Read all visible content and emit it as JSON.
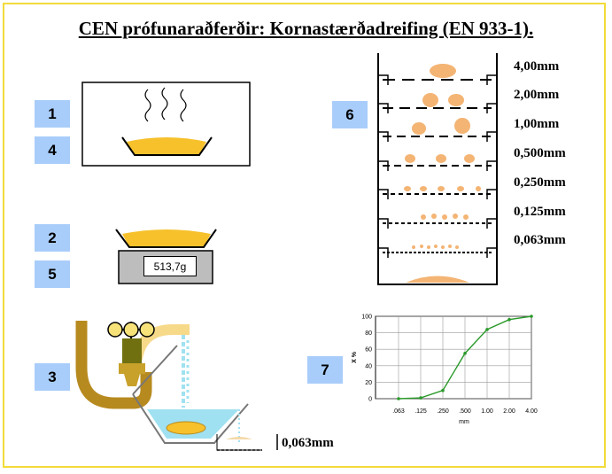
{
  "title": "CEN prófunaraðferðir: Kornastærðadreifing (EN 933-1).",
  "steps": [
    "1",
    "4",
    "2",
    "5",
    "3",
    "6",
    "7"
  ],
  "scale_reading": "513,7g",
  "wash_sieve_label": "0,063mm",
  "sieve_sizes": [
    "4,00mm",
    "2,00mm",
    "1,00mm",
    "0,500mm",
    "0,250mm",
    "0,125mm",
    "0,063mm"
  ],
  "colors": {
    "material": "#f7c12c",
    "particle": "#f4b474",
    "pipe": "#b78a1f",
    "water": "#a0e1f1",
    "frame": "#f2dc3a",
    "label_box": "#a9cdfa",
    "curve": "#2a9a2a"
  },
  "chart_data": {
    "type": "line",
    "x": [
      ".063",
      ".125",
      ".250",
      ".500",
      "1.00",
      "2.00",
      "4.00"
    ],
    "y": [
      0,
      1,
      10,
      55,
      84,
      96,
      100
    ],
    "ylabel": "X %",
    "xlabel": "mm",
    "yticks": [
      0,
      20,
      40,
      60,
      80,
      100
    ],
    "ylim": [
      0,
      100
    ],
    "grid": true
  }
}
